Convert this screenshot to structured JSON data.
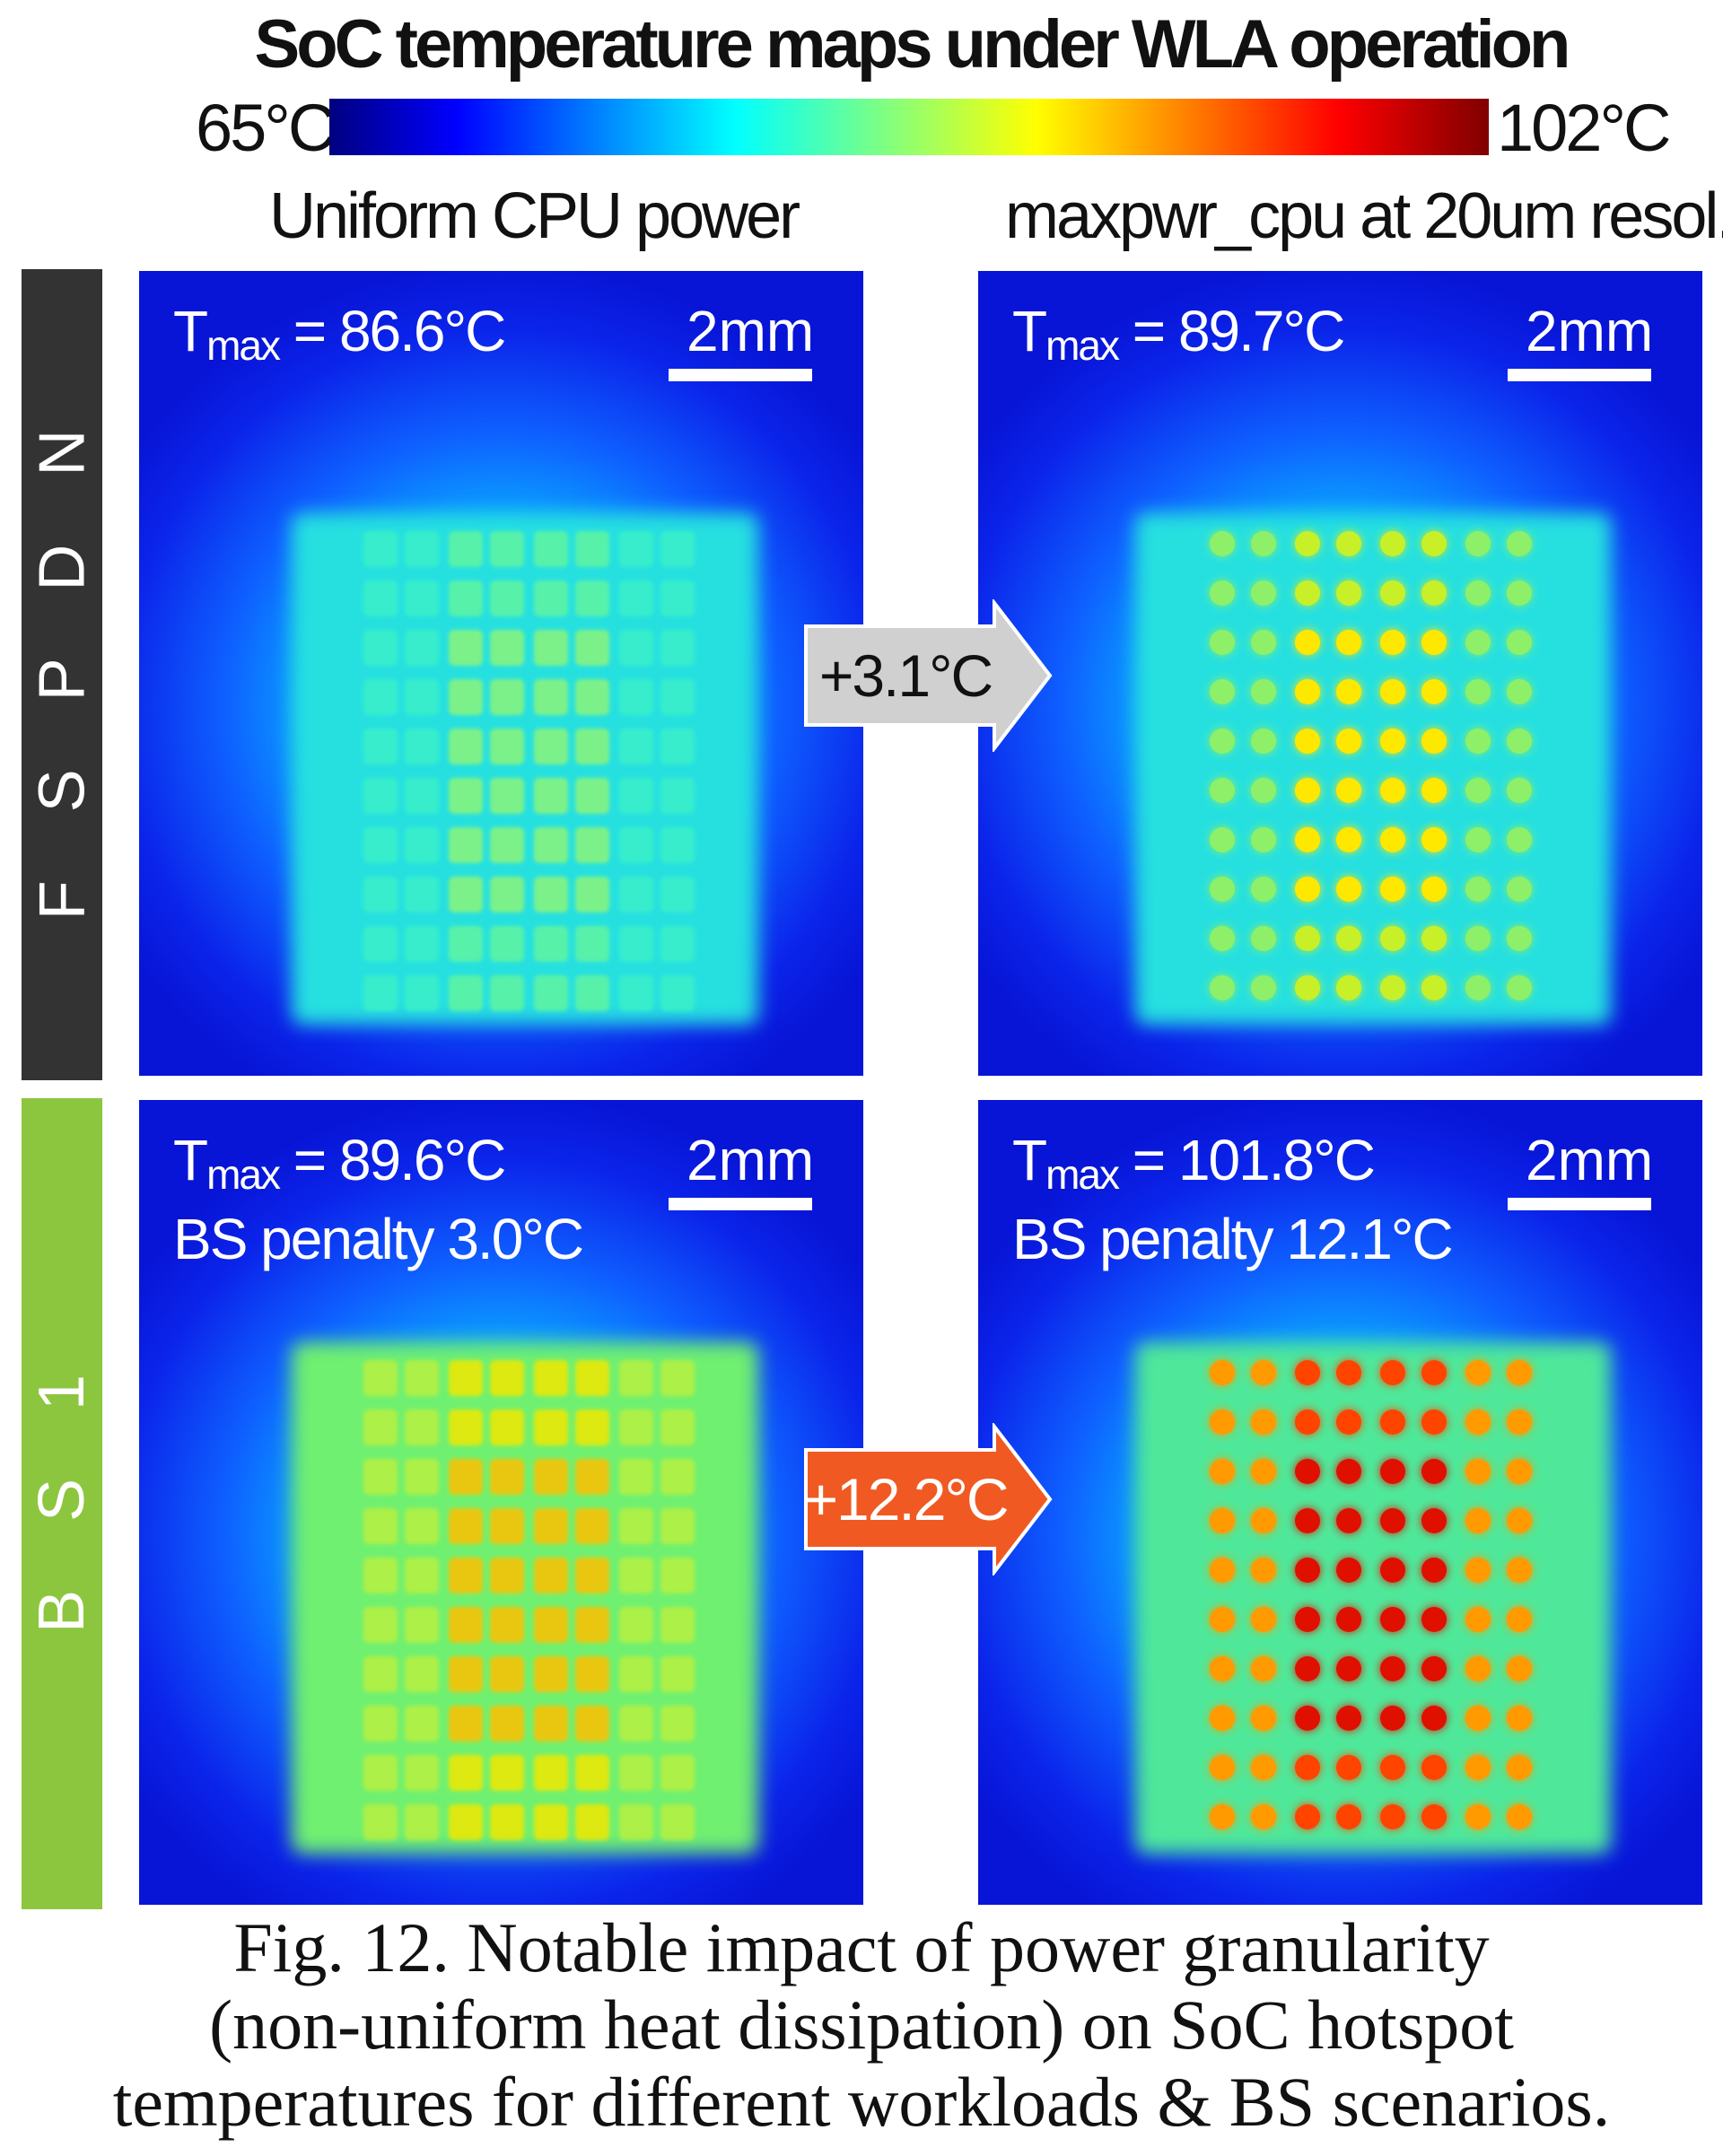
{
  "title": "SoC temperature maps under WLA operation",
  "colorbar": {
    "min_label": "65°C",
    "max_label": "102°C",
    "min": 65,
    "max": 102
  },
  "columns": [
    "Uniform CPU power",
    "maxpwr_cpu at 20um resol."
  ],
  "rows": [
    {
      "label": "F S P D N",
      "color": "#333333"
    },
    {
      "label": "B S 1",
      "color": "#8cc63f"
    }
  ],
  "panels": [
    {
      "tmax_prefix": "T",
      "tmax_sub": "max",
      "tmax_text": " = 86.6°C",
      "tmax": 86.6,
      "penalty": "",
      "scale": "2mm"
    },
    {
      "tmax_prefix": "T",
      "tmax_sub": "max",
      "tmax_text": " = 89.7°C",
      "tmax": 89.7,
      "penalty": "",
      "scale": "2mm"
    },
    {
      "tmax_prefix": "T",
      "tmax_sub": "max",
      "tmax_text": " = 89.6°C",
      "tmax": 89.6,
      "penalty": "BS penalty 3.0°C",
      "scale": "2mm"
    },
    {
      "tmax_prefix": "T",
      "tmax_sub": "max",
      "tmax_text": " = 101.8°C",
      "tmax": 101.8,
      "penalty": "BS penalty 12.1°C",
      "scale": "2mm"
    }
  ],
  "arrows": [
    {
      "label": "+3.1°C",
      "fill": "#d0d0d0",
      "text_color": "#111111"
    },
    {
      "label": "+12.2°C",
      "fill": "#f05a22",
      "text_color": "#ffffff"
    }
  ],
  "caption": [
    "Fig. 12. Notable impact of power granularity",
    "(non-uniform heat dissipation) on SoC hotspot",
    "temperatures for different workloads & BS scenarios."
  ]
}
